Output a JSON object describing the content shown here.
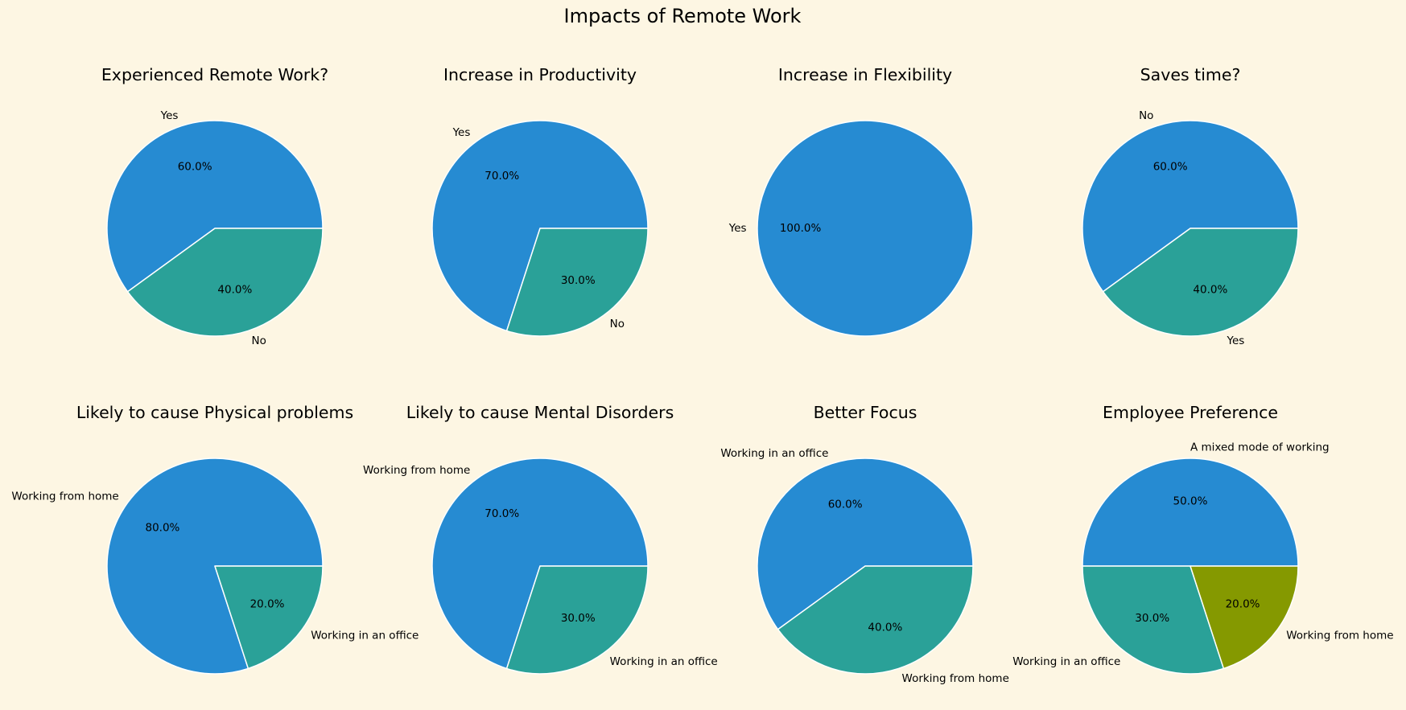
{
  "title": "Impacts of Remote Work",
  "colors": {
    "background": "#fdf6e3",
    "slice_1": "#268bd2",
    "slice_2": "#2aa198",
    "slice_3": "#859900",
    "edge": "#ffffff"
  },
  "chart_data": [
    {
      "type": "pie",
      "title": "Experienced Remote Work?",
      "labels": [
        "Yes",
        "No"
      ],
      "values": [
        60.0,
        40.0
      ],
      "autopct": [
        "60.0%",
        "40.0%"
      ]
    },
    {
      "type": "pie",
      "title": "Increase in Productivity",
      "labels": [
        "Yes",
        "No"
      ],
      "values": [
        70.0,
        30.0
      ],
      "autopct": [
        "70.0%",
        "30.0%"
      ]
    },
    {
      "type": "pie",
      "title": "Increase in Flexibility",
      "labels": [
        "Yes"
      ],
      "values": [
        100.0
      ],
      "autopct": [
        "100.0%"
      ]
    },
    {
      "type": "pie",
      "title": "Saves time?",
      "labels": [
        "No",
        "Yes"
      ],
      "values": [
        60.0,
        40.0
      ],
      "autopct": [
        "60.0%",
        "40.0%"
      ]
    },
    {
      "type": "pie",
      "title": "Likely to cause Physical problems",
      "labels": [
        "Working from home",
        "Working in an office"
      ],
      "values": [
        80.0,
        20.0
      ],
      "autopct": [
        "80.0%",
        "20.0%"
      ]
    },
    {
      "type": "pie",
      "title": "Likely to cause Mental Disorders",
      "labels": [
        "Working from home",
        "Working in an office"
      ],
      "values": [
        70.0,
        30.0
      ],
      "autopct": [
        "70.0%",
        "30.0%"
      ]
    },
    {
      "type": "pie",
      "title": "Better Focus",
      "labels": [
        "Working in an office",
        "Working from home"
      ],
      "values": [
        60.0,
        40.0
      ],
      "autopct": [
        "60.0%",
        "40.0%"
      ]
    },
    {
      "type": "pie",
      "title": "Employee Preference",
      "labels": [
        "A mixed mode of working",
        "Working in an office",
        "Working from home"
      ],
      "values": [
        50.0,
        30.0,
        20.0
      ],
      "autopct": [
        "50.0%",
        "30.0%",
        "20.0%"
      ]
    }
  ]
}
